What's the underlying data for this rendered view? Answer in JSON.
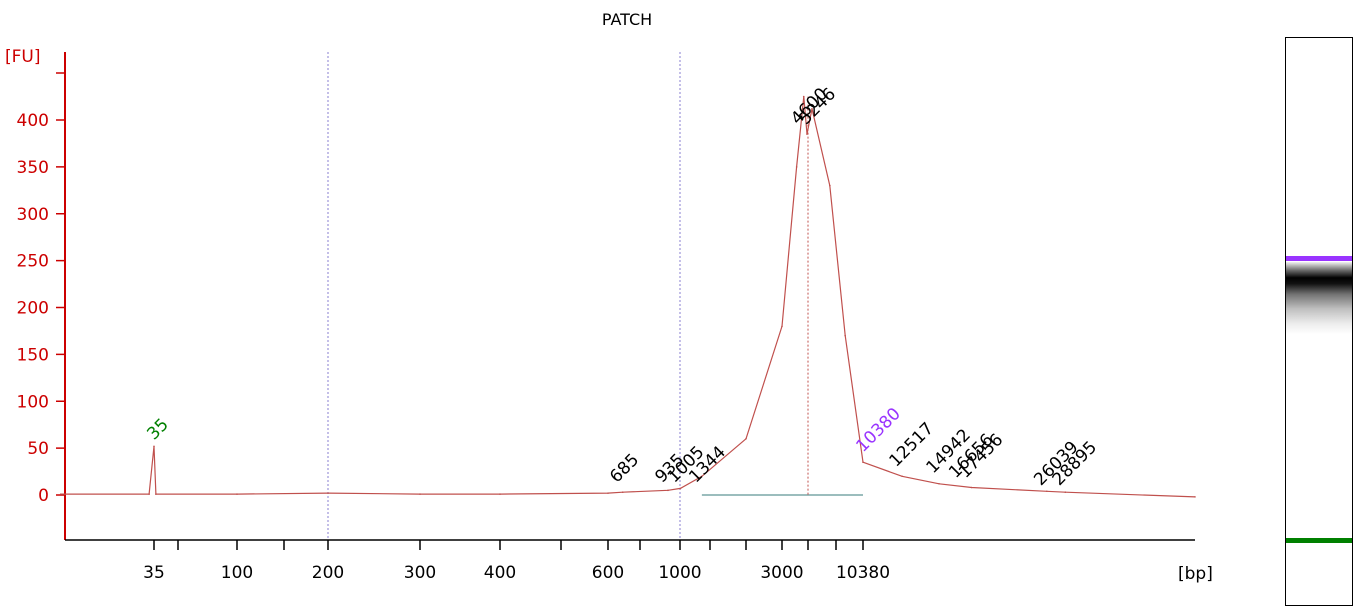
{
  "colors": {
    "axis": "#cc0000",
    "trace": "#c0504d",
    "lower_marker": "#008000",
    "upper_marker": "#9933ff",
    "dotted_vline": "#8a7fd0",
    "region_line": "#7aa7a7",
    "label": "#000000"
  },
  "chart_data": {
    "type": "line",
    "title": "PATCH",
    "ylabel": "[FU]",
    "xlabel": "[bp]",
    "y_axis": {
      "range": [
        -50,
        450
      ],
      "ticks": [
        0,
        50,
        100,
        150,
        200,
        250,
        300,
        350,
        400
      ]
    },
    "x_axis": {
      "scale": "nonlinear (sizing ladder)",
      "tick_labels": [
        "35",
        "100",
        "200",
        "300",
        "400",
        "600",
        "1000",
        "3000",
        "10380"
      ],
      "dotted_verticals_at": [
        "200",
        "1000"
      ]
    },
    "markers": [
      {
        "label": "35",
        "kind": "lower"
      },
      {
        "label": "10380",
        "kind": "upper"
      }
    ],
    "peak_labels": [
      "685",
      "935",
      "1005",
      "1344",
      "4600",
      "5246",
      "12517",
      "14942",
      "16656",
      "17456",
      "26039",
      "28895"
    ],
    "series": [
      {
        "values": [
          {
            "x": 34,
            "y": 1
          },
          {
            "x": 35,
            "y": 52
          },
          {
            "x": 36,
            "y": 1
          },
          {
            "x": 100,
            "y": 1
          },
          {
            "x": 200,
            "y": 2
          },
          {
            "x": 300,
            "y": 1
          },
          {
            "x": 400,
            "y": 1
          },
          {
            "x": 600,
            "y": 2
          },
          {
            "x": 685,
            "y": 3
          },
          {
            "x": 935,
            "y": 5
          },
          {
            "x": 1005,
            "y": 7
          },
          {
            "x": 1344,
            "y": 20
          },
          {
            "x": 2000,
            "y": 60
          },
          {
            "x": 3000,
            "y": 180
          },
          {
            "x": 4000,
            "y": 350
          },
          {
            "x": 4600,
            "y": 425
          },
          {
            "x": 4900,
            "y": 385
          },
          {
            "x": 5246,
            "y": 412
          },
          {
            "x": 6500,
            "y": 330
          },
          {
            "x": 8000,
            "y": 170
          },
          {
            "x": 10380,
            "y": 35
          },
          {
            "x": 12517,
            "y": 20
          },
          {
            "x": 14942,
            "y": 12
          },
          {
            "x": 17456,
            "y": 8
          },
          {
            "x": 26039,
            "y": 4
          },
          {
            "x": 28895,
            "y": 3
          },
          {
            "x": 60000,
            "y": -2
          }
        ]
      }
    ]
  },
  "gel": {
    "upper_marker_color": "#9933ff",
    "lower_marker_color": "#008000",
    "band_level": 1
  }
}
